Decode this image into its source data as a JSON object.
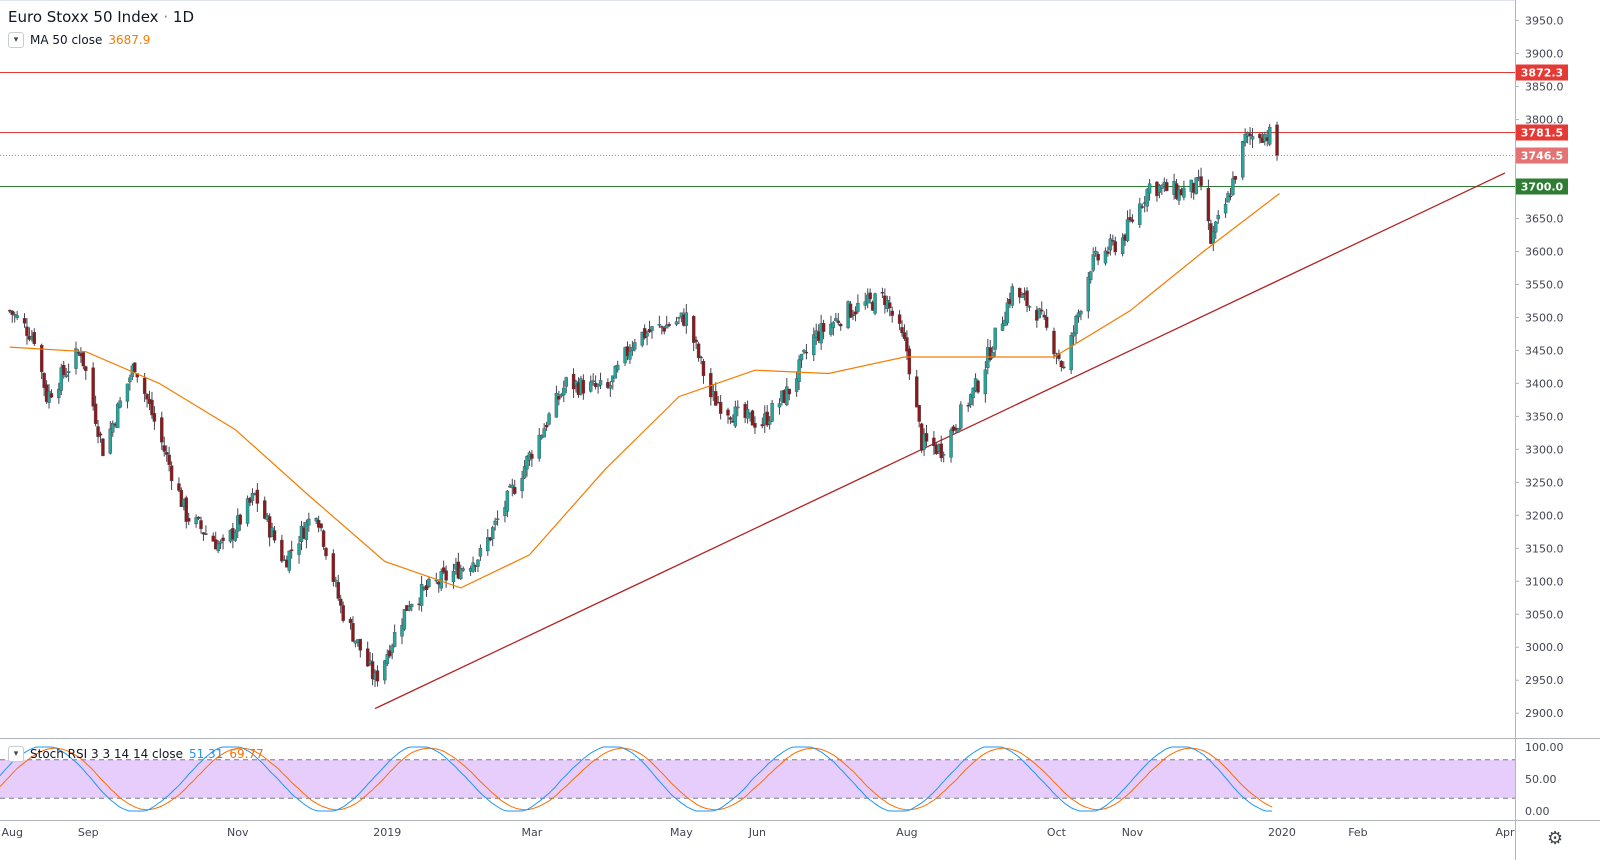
{
  "header": {
    "symbol": "Euro Stoxx 50 Index",
    "sep": "·",
    "interval": "1D",
    "toggle_icon": "chevron-down-icon"
  },
  "ma": {
    "label": "MA 50 close",
    "value": "3687.9",
    "color": "#f57c00"
  },
  "stoch": {
    "label": "Stoch RSI 3 3 14 14 close",
    "k": "51.31",
    "d": "69.77",
    "k_color": "#2196f3",
    "d_color": "#ff6d00"
  },
  "settings_icon": "gear-icon",
  "colors": {
    "up": "#26a69a",
    "down": "#8b1a1a",
    "ma": "#f57c00",
    "trend": "#b22222",
    "support": "#2e7d32",
    "resistance": "#e53935",
    "rsi_band": "#e7cdfb"
  },
  "chart_data": [
    {
      "type": "candlestick",
      "title": "Euro Stoxx 50 Index",
      "interval": "1D",
      "y_range": [
        2880,
        3980
      ],
      "y_ticks": [
        "3950.0",
        "3900.0",
        "3850.0",
        "3800.0",
        "3650.0",
        "3600.0",
        "3550.0",
        "3500.0",
        "3450.0",
        "3400.0",
        "3350.0",
        "3300.0",
        "3250.0",
        "3200.0",
        "3150.0",
        "3100.0",
        "3050.0",
        "3000.0",
        "2950.0",
        "2900.0"
      ],
      "x_labels": [
        "Aug",
        "Sep",
        "Nov",
        "2019",
        "Mar",
        "May",
        "Jun",
        "Aug",
        "Oct",
        "Nov",
        "2020",
        "Feb",
        "Apr"
      ],
      "horizontal_lines": [
        {
          "label": "3872.3",
          "value": 3872.3,
          "style": "solid",
          "color": "#e53935"
        },
        {
          "label": "3781.5",
          "value": 3781.5,
          "style": "solid",
          "color": "#e53935"
        },
        {
          "label": "3746.5",
          "value": 3746.5,
          "style": "dotted",
          "color": "#e57373"
        },
        {
          "label": "3700.0",
          "value": 3700.0,
          "style": "solid",
          "color": "#2e7d32"
        }
      ],
      "trendline": {
        "from": {
          "x": "2018-12-27",
          "y": 2907
        },
        "to": {
          "x": "2020-04-01",
          "y": 3719
        }
      },
      "price_anchors": [
        [
          "2018-07-31",
          3510
        ],
        [
          "2018-08-10",
          3470
        ],
        [
          "2018-08-15",
          3380
        ],
        [
          "2018-08-29",
          3450
        ],
        [
          "2018-09-07",
          3300
        ],
        [
          "2018-09-20",
          3430
        ],
        [
          "2018-10-11",
          3200
        ],
        [
          "2018-10-26",
          3150
        ],
        [
          "2018-11-08",
          3230
        ],
        [
          "2018-11-20",
          3130
        ],
        [
          "2018-12-03",
          3210
        ],
        [
          "2018-12-13",
          3060
        ],
        [
          "2018-12-27",
          2950
        ],
        [
          "2019-01-10",
          3070
        ],
        [
          "2019-02-08",
          3140
        ],
        [
          "2019-03-04",
          3320
        ],
        [
          "2019-03-15",
          3400
        ],
        [
          "2019-04-01",
          3390
        ],
        [
          "2019-04-12",
          3470
        ],
        [
          "2019-05-03",
          3500
        ],
        [
          "2019-05-13",
          3380
        ],
        [
          "2019-05-24",
          3350
        ],
        [
          "2019-06-03",
          3340
        ],
        [
          "2019-06-14",
          3390
        ],
        [
          "2019-06-24",
          3470
        ],
        [
          "2019-07-08",
          3510
        ],
        [
          "2019-07-23",
          3530
        ],
        [
          "2019-08-01",
          3450
        ],
        [
          "2019-08-07",
          3310
        ],
        [
          "2019-08-15",
          3300
        ],
        [
          "2019-08-30",
          3400
        ],
        [
          "2019-09-13",
          3540
        ],
        [
          "2019-09-23",
          3510
        ],
        [
          "2019-10-01",
          3450
        ],
        [
          "2019-10-04",
          3420
        ],
        [
          "2019-10-15",
          3580
        ],
        [
          "2019-10-28",
          3620
        ],
        [
          "2019-11-08",
          3700
        ],
        [
          "2019-11-20",
          3690
        ],
        [
          "2019-11-29",
          3700
        ],
        [
          "2019-12-03",
          3615
        ],
        [
          "2019-12-10",
          3680
        ],
        [
          "2019-12-17",
          3770
        ],
        [
          "2019-12-23",
          3780
        ],
        [
          "2019-12-27",
          3776
        ],
        [
          "2019-12-30",
          3746.5
        ]
      ]
    },
    {
      "type": "line",
      "title": "MA 50 close",
      "series": [
        {
          "name": "MA 50 close",
          "values": [
            [
              "2018-07-31",
              3455
            ],
            [
              "2018-08-31",
              3448
            ],
            [
              "2018-09-30",
              3400
            ],
            [
              "2018-10-31",
              3330
            ],
            [
              "2018-11-30",
              3230
            ],
            [
              "2018-12-31",
              3130
            ],
            [
              "2019-01-31",
              3090
            ],
            [
              "2019-02-28",
              3140
            ],
            [
              "2019-03-31",
              3270
            ],
            [
              "2019-04-30",
              3380
            ],
            [
              "2019-05-31",
              3420
            ],
            [
              "2019-06-30",
              3415
            ],
            [
              "2019-07-31",
              3440
            ],
            [
              "2019-08-31",
              3440
            ],
            [
              "2019-09-30",
              3440
            ],
            [
              "2019-10-31",
              3510
            ],
            [
              "2019-11-30",
              3600
            ],
            [
              "2019-12-31",
              3687.9
            ]
          ]
        }
      ]
    },
    {
      "type": "line",
      "title": "Stoch RSI 3 3 14 14 close",
      "y_range": [
        0,
        100
      ],
      "y_ticks": [
        "100.00",
        "50.00",
        "0.00"
      ],
      "bands": [
        20,
        80
      ],
      "series": [
        {
          "name": "K",
          "last": 51.31
        },
        {
          "name": "D",
          "last": 69.77
        }
      ]
    }
  ]
}
